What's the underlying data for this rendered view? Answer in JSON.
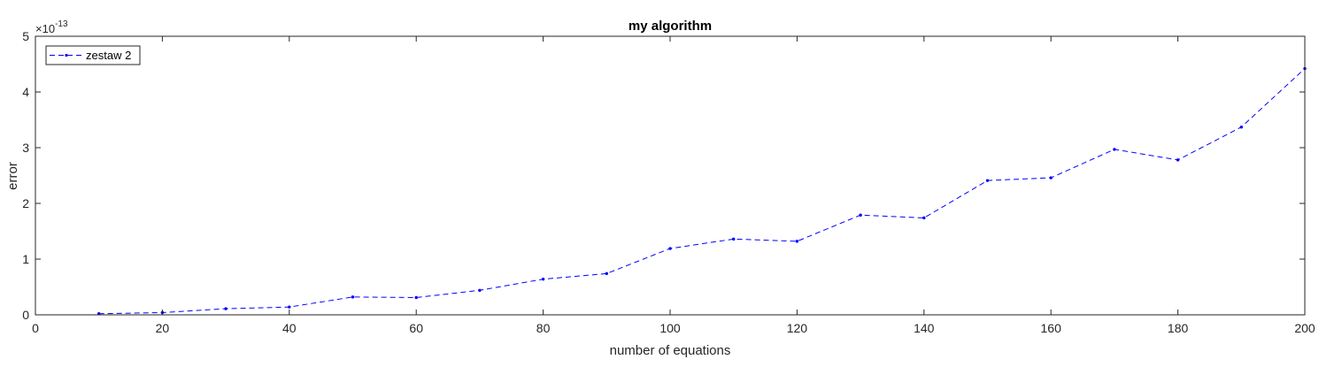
{
  "chart_data": {
    "type": "line",
    "title": "my algorithm",
    "xlabel": "number of equations",
    "ylabel": "error",
    "xlim": [
      0,
      200
    ],
    "ylim": [
      0,
      5
    ],
    "y_exponent_base": "×10",
    "y_exponent_power": "-13",
    "x_ticks": [
      "0",
      "20",
      "40",
      "60",
      "80",
      "100",
      "120",
      "140",
      "160",
      "180",
      "200"
    ],
    "y_ticks": [
      "0",
      "1",
      "2",
      "3",
      "4",
      "5"
    ],
    "legend_position": "top-left",
    "grid": false,
    "series": [
      {
        "name": "zestaw 2",
        "color": "#0000FF",
        "line_style": "dashed",
        "marker": "point",
        "x": [
          10,
          20,
          30,
          40,
          50,
          60,
          70,
          80,
          90,
          100,
          110,
          120,
          130,
          140,
          150,
          160,
          170,
          180,
          190,
          200
        ],
        "y": [
          0.02,
          0.04,
          0.11,
          0.14,
          0.32,
          0.31,
          0.44,
          0.64,
          0.74,
          1.19,
          1.36,
          1.32,
          1.79,
          1.74,
          2.41,
          2.46,
          2.97,
          2.78,
          3.37,
          4.42
        ]
      }
    ]
  }
}
